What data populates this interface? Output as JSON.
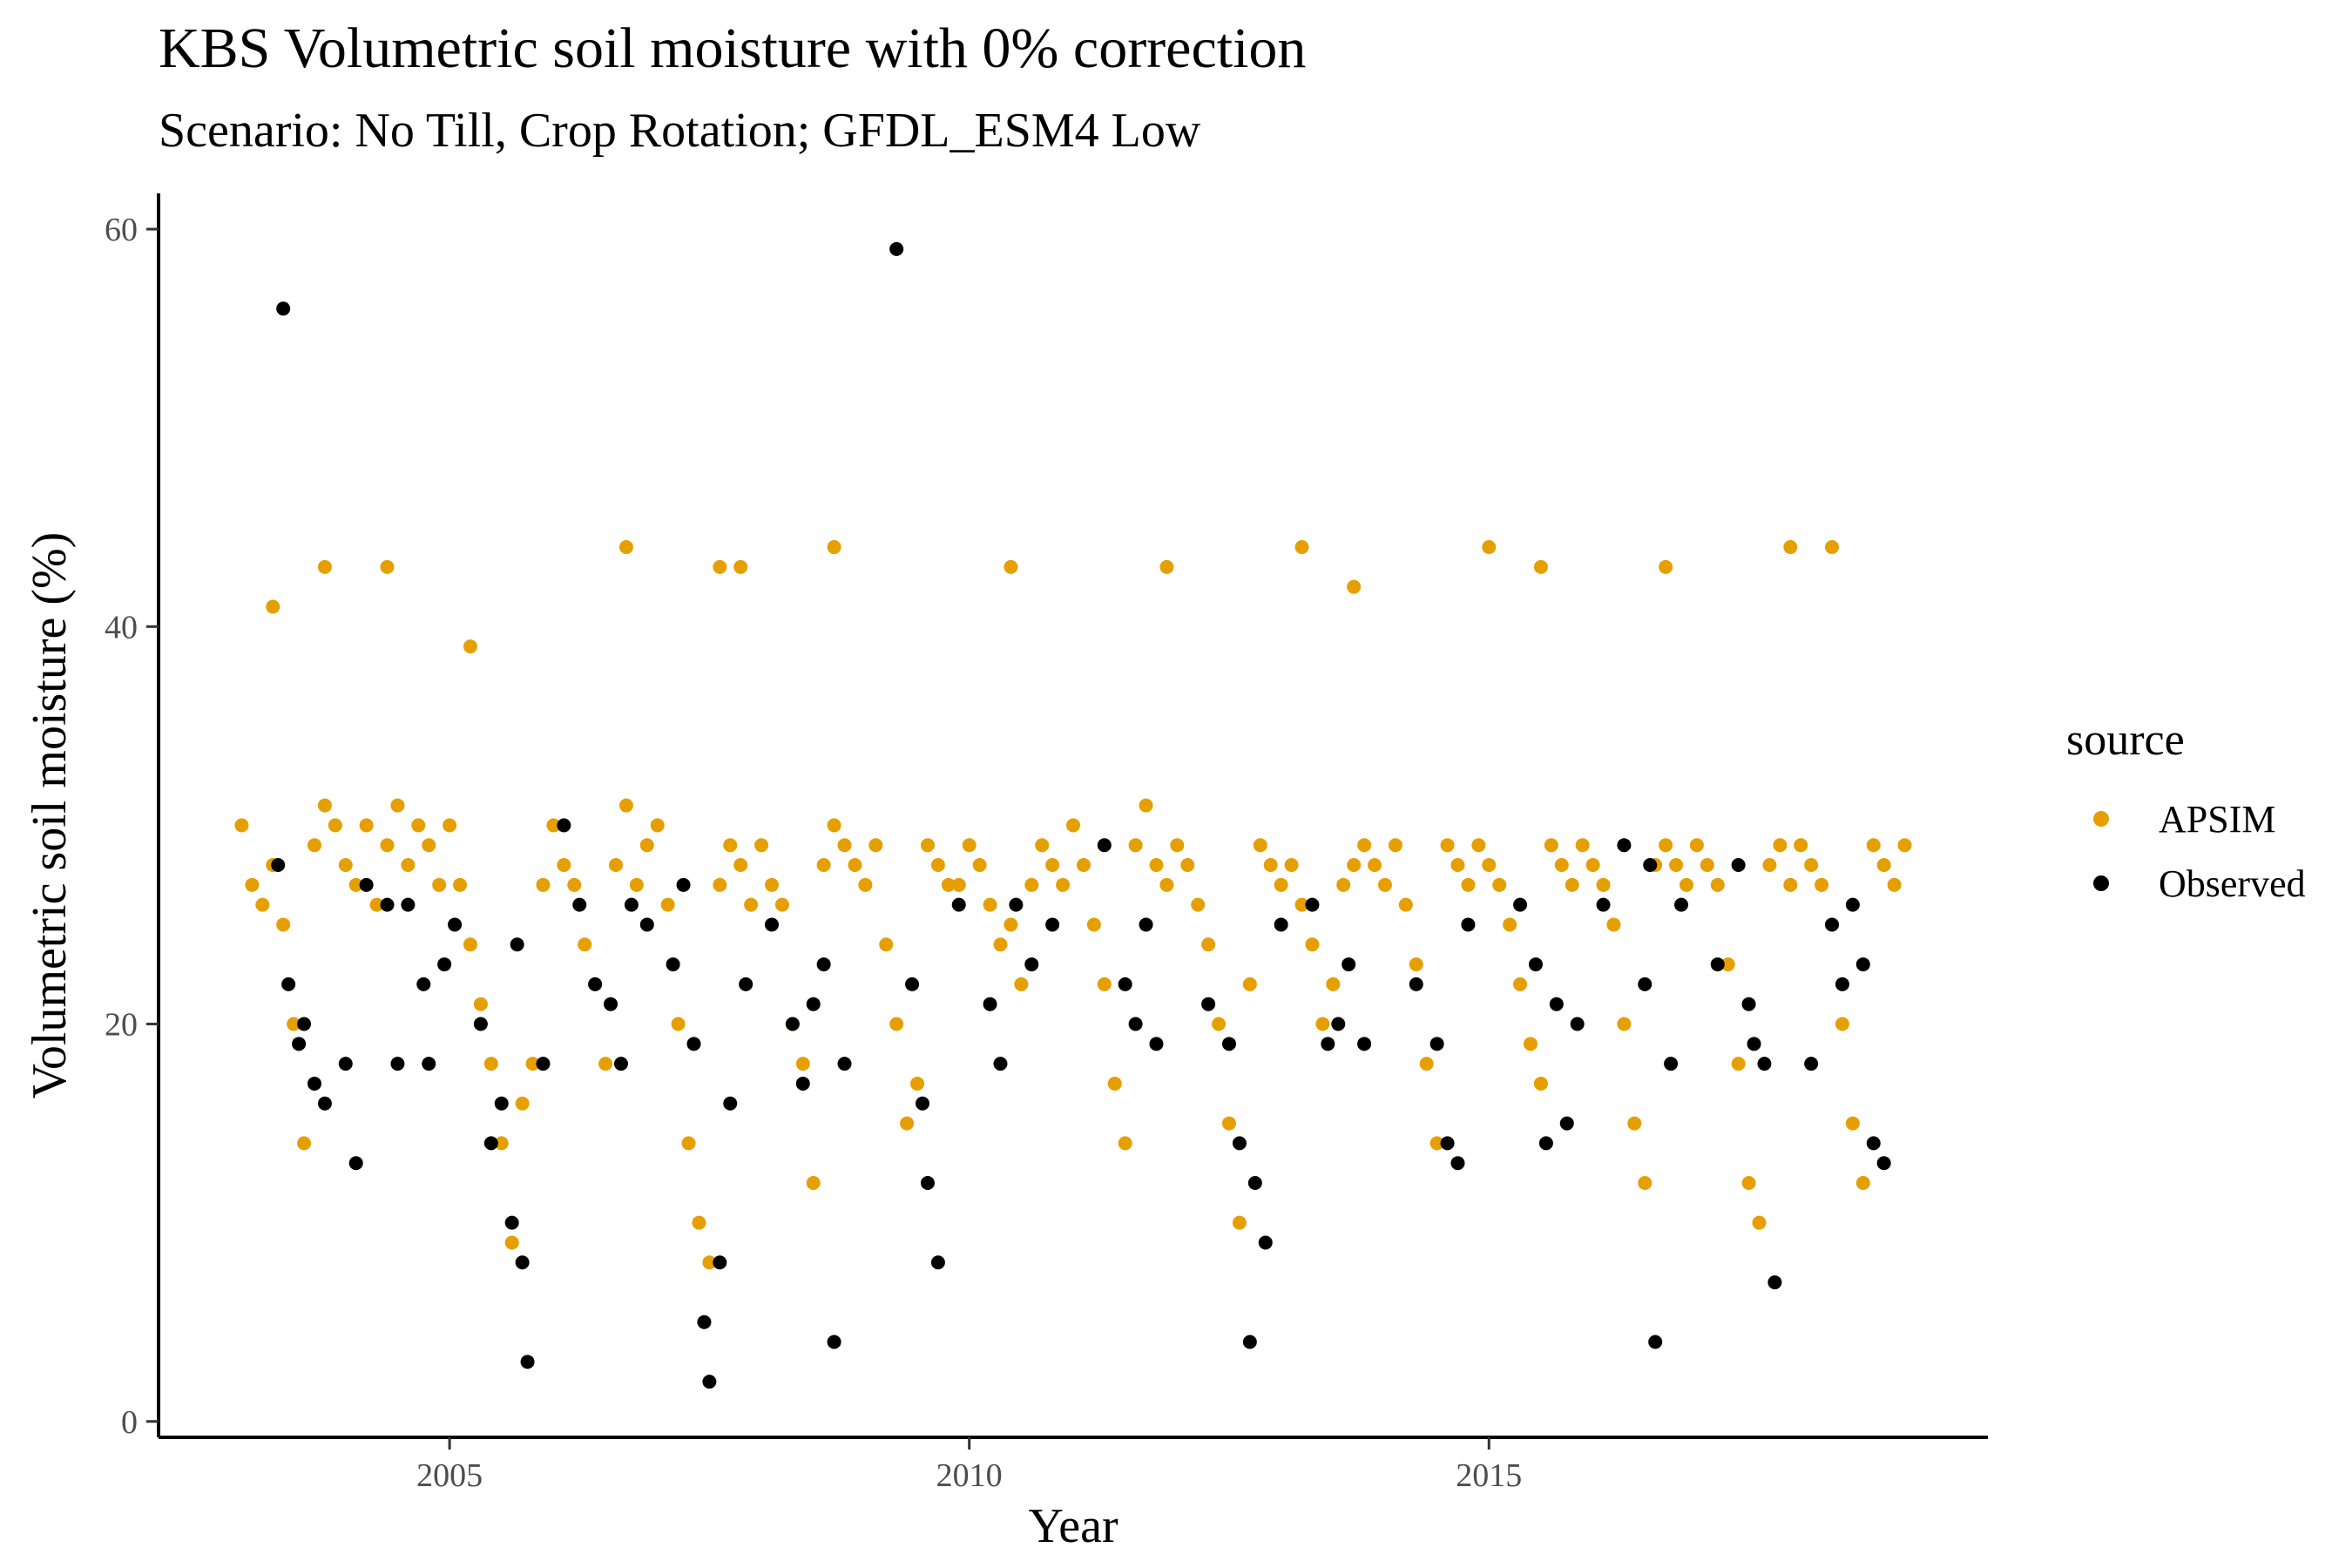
{
  "chart_data": {
    "type": "scatter",
    "title": "KBS Volumetric soil moisture with 0% correction",
    "subtitle": "Scenario: No Till, Crop Rotation; GFDL_ESM4 Low",
    "xlabel": "Year",
    "ylabel": "Volumetric soil moisture (%)",
    "xlim": [
      2002.2,
      2019.8
    ],
    "ylim": [
      -0.8,
      61.8
    ],
    "xticks": [
      2005,
      2010,
      2015
    ],
    "yticks": [
      0,
      20,
      40,
      60
    ],
    "grid": false,
    "legend": {
      "title": "source",
      "placement": "right"
    },
    "series": [
      {
        "name": "APSIM",
        "color": "#E69F00",
        "x": [
          2003.0,
          2003.1,
          2003.2,
          2003.3,
          2003.4,
          2003.5,
          2003.6,
          2003.7,
          2003.8,
          2003.9,
          2004.0,
          2004.1,
          2004.2,
          2004.3,
          2004.4,
          2004.5,
          2004.6,
          2004.7,
          2004.8,
          2004.9,
          2005.0,
          2005.1,
          2005.2,
          2005.3,
          2005.4,
          2005.5,
          2005.6,
          2005.7,
          2005.8,
          2005.9,
          2006.0,
          2006.1,
          2006.2,
          2006.3,
          2006.4,
          2006.5,
          2006.6,
          2006.7,
          2006.8,
          2006.9,
          2007.0,
          2007.1,
          2007.2,
          2007.3,
          2007.4,
          2007.5,
          2007.6,
          2007.7,
          2007.8,
          2007.9,
          2008.0,
          2008.1,
          2008.2,
          2008.3,
          2008.4,
          2008.5,
          2008.6,
          2008.7,
          2008.8,
          2008.9,
          2009.0,
          2009.1,
          2009.2,
          2009.3,
          2009.4,
          2009.5,
          2009.6,
          2009.7,
          2009.8,
          2009.9,
          2010.0,
          2010.1,
          2010.2,
          2010.3,
          2010.4,
          2010.5,
          2010.6,
          2010.7,
          2010.8,
          2010.9,
          2011.0,
          2011.1,
          2011.2,
          2011.3,
          2011.4,
          2011.5,
          2011.6,
          2011.7,
          2011.8,
          2011.9,
          2012.0,
          2012.1,
          2012.2,
          2012.3,
          2012.4,
          2012.5,
          2012.6,
          2012.7,
          2012.8,
          2012.9,
          2013.0,
          2013.1,
          2013.2,
          2013.3,
          2013.4,
          2013.5,
          2013.6,
          2013.7,
          2013.8,
          2013.9,
          2014.0,
          2014.1,
          2014.2,
          2014.3,
          2014.4,
          2014.5,
          2014.6,
          2014.7,
          2014.8,
          2014.9,
          2015.0,
          2015.1,
          2015.2,
          2015.3,
          2015.4,
          2015.5,
          2015.6,
          2015.7,
          2015.8,
          2015.9,
          2016.0,
          2016.1,
          2016.2,
          2016.3,
          2016.4,
          2016.5,
          2016.6,
          2016.7,
          2016.8,
          2016.9,
          2017.0,
          2017.1,
          2017.2,
          2017.3,
          2017.4,
          2017.5,
          2017.6,
          2017.7,
          2017.8,
          2017.9,
          2018.0,
          2018.1,
          2018.2,
          2018.3,
          2018.4,
          2018.5,
          2018.6,
          2018.7,
          2018.8,
          2018.9,
          2019.0,
          2003.3,
          2003.8,
          2004.4,
          2005.2,
          2006.7,
          2007.6,
          2007.8,
          2008.7,
          2010.4,
          2011.9,
          2013.2,
          2013.7,
          2015.0,
          2015.5,
          2016.7,
          2017.9,
          2018.3
        ],
        "y": [
          30,
          27,
          26,
          28,
          25,
          20,
          14,
          29,
          31,
          30,
          28,
          27,
          30,
          26,
          29,
          31,
          28,
          30,
          29,
          27,
          30,
          27,
          24,
          21,
          18,
          14,
          9,
          16,
          18,
          27,
          30,
          28,
          27,
          24,
          22,
          18,
          28,
          31,
          27,
          29,
          30,
          26,
          20,
          14,
          10,
          8,
          27,
          29,
          28,
          26,
          29,
          27,
          26,
          20,
          18,
          12,
          28,
          30,
          29,
          28,
          27,
          29,
          24,
          20,
          15,
          17,
          29,
          28,
          27,
          27,
          29,
          28,
          26,
          24,
          25,
          22,
          27,
          29,
          28,
          27,
          30,
          28,
          25,
          22,
          17,
          14,
          29,
          31,
          28,
          27,
          29,
          28,
          26,
          24,
          20,
          15,
          10,
          22,
          29,
          28,
          27,
          28,
          26,
          24,
          20,
          22,
          27,
          28,
          29,
          28,
          27,
          29,
          26,
          23,
          18,
          14,
          29,
          28,
          27,
          29,
          28,
          27,
          25,
          22,
          19,
          17,
          29,
          28,
          27,
          29,
          28,
          27,
          25,
          20,
          15,
          12,
          28,
          29,
          28,
          27,
          29,
          28,
          27,
          23,
          18,
          12,
          10,
          28,
          29,
          27,
          29,
          28,
          27,
          25,
          20,
          15,
          12,
          29,
          28,
          27,
          29,
          41,
          43,
          43,
          39,
          44,
          43,
          43,
          44,
          43,
          43,
          44,
          42,
          44,
          43,
          43,
          44,
          44
        ]
      },
      {
        "name": "Observed",
        "color": "#000000",
        "x": [
          2003.35,
          2003.4,
          2003.45,
          2003.55,
          2003.6,
          2003.7,
          2003.8,
          2004.0,
          2004.1,
          2004.2,
          2004.4,
          2004.5,
          2004.6,
          2004.75,
          2004.8,
          2004.95,
          2005.05,
          2005.3,
          2005.4,
          2005.5,
          2005.6,
          2005.65,
          2005.7,
          2005.75,
          2005.9,
          2006.1,
          2006.25,
          2006.4,
          2006.55,
          2006.65,
          2006.75,
          2006.9,
          2007.15,
          2007.25,
          2007.35,
          2007.45,
          2007.5,
          2007.6,
          2007.7,
          2007.85,
          2008.1,
          2008.3,
          2008.4,
          2008.5,
          2008.6,
          2008.7,
          2008.8,
          2009.3,
          2009.45,
          2009.55,
          2009.6,
          2009.7,
          2009.9,
          2010.2,
          2010.3,
          2010.45,
          2010.6,
          2010.8,
          2011.3,
          2011.5,
          2011.6,
          2011.7,
          2011.8,
          2012.3,
          2012.5,
          2012.6,
          2012.7,
          2012.75,
          2012.85,
          2013.0,
          2013.3,
          2013.45,
          2013.55,
          2013.65,
          2013.8,
          2014.3,
          2014.5,
          2014.6,
          2014.7,
          2014.8,
          2015.3,
          2015.45,
          2015.55,
          2015.65,
          2015.75,
          2015.85,
          2016.1,
          2016.3,
          2016.5,
          2016.55,
          2016.6,
          2016.75,
          2016.85,
          2017.2,
          2017.4,
          2017.5,
          2017.55,
          2017.65,
          2017.75,
          2018.1,
          2018.3,
          2018.4,
          2018.5,
          2018.6,
          2018.7,
          2018.8
        ],
        "y": [
          28,
          56,
          22,
          19,
          20,
          17,
          16,
          18,
          13,
          27,
          26,
          18,
          26,
          22,
          18,
          23,
          25,
          20,
          14,
          16,
          10,
          24,
          8,
          3,
          18,
          30,
          26,
          22,
          21,
          18,
          26,
          25,
          23,
          27,
          19,
          5,
          2,
          8,
          16,
          22,
          25,
          20,
          17,
          21,
          23,
          4,
          18,
          59,
          22,
          16,
          12,
          8,
          26,
          21,
          18,
          26,
          23,
          25,
          29,
          22,
          20,
          25,
          19,
          21,
          19,
          14,
          4,
          12,
          9,
          25,
          26,
          19,
          20,
          23,
          19,
          22,
          19,
          14,
          13,
          25,
          26,
          23,
          14,
          21,
          15,
          20,
          26,
          29,
          22,
          28,
          4,
          18,
          26,
          23,
          28,
          21,
          19,
          18,
          7,
          18,
          25,
          22,
          26,
          23,
          14,
          13
        ]
      }
    ]
  }
}
